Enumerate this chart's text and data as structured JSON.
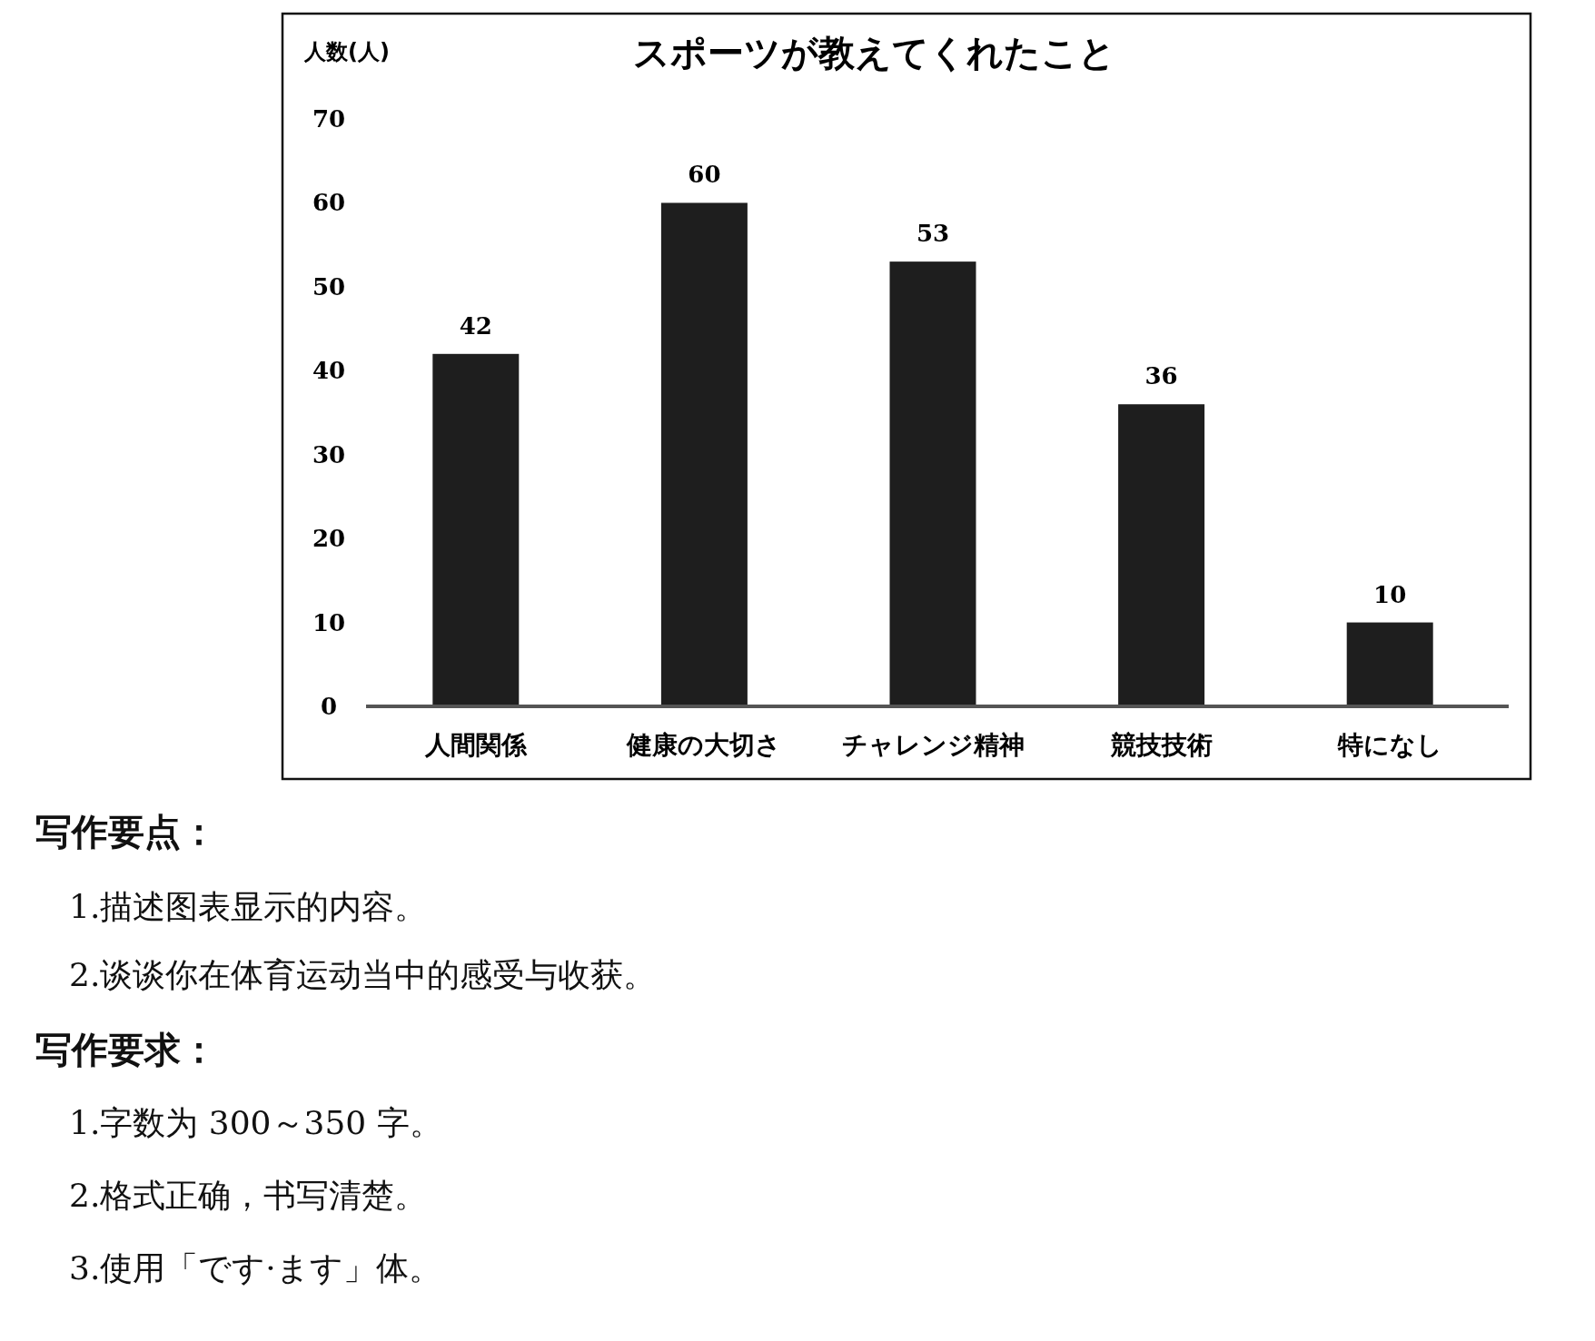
{
  "chart_data": {
    "type": "bar",
    "title": "スポーツが教えてくれたこと",
    "ylabel": "人数(人)",
    "categories": [
      "人間関係",
      "健康の大切さ",
      "チャレンジ精神",
      "競技技術",
      "特になし"
    ],
    "values": [
      42,
      60,
      53,
      36,
      10
    ],
    "color": "#1e1e1e",
    "ylim": [
      0,
      70
    ],
    "yticks": [
      0,
      10,
      20,
      30,
      40,
      50,
      60,
      70
    ],
    "data_labels": true,
    "annotations": [
      "**写作要点：**",
      "1.描述图表显示的内容。",
      "2.谈谈你在体育运动当中的感受与收获。",
      "**写作要求：**",
      "1.字数为 300～350 字。",
      "2.格式正确，书写清楚。",
      "3.使用「です·ます」体。"
    ]
  }
}
